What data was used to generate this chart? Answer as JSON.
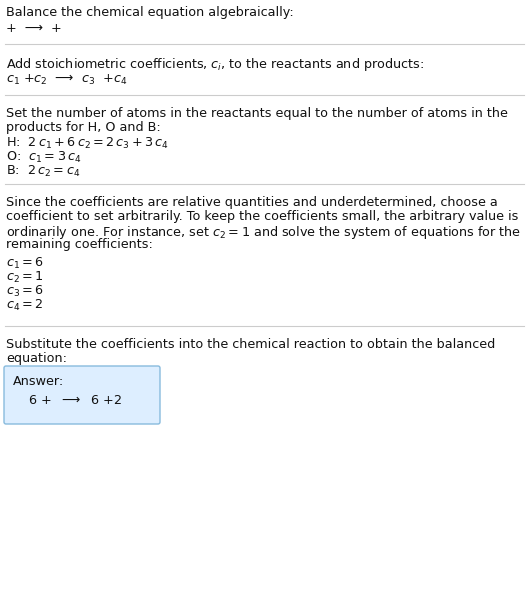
{
  "title": "Balance the chemical equation algebraically:",
  "line1": "+  ⟶  +",
  "section1_header": "Add stoichiometric coefficients, $c_i$, to the reactants and products:",
  "section1_eq_parts": [
    "$c_1$",
    " +",
    "$c_2$",
    "  ⟶  ",
    "$c_3$",
    "  +",
    "$c_4$"
  ],
  "section2_header_line1": "Set the number of atoms in the reactants equal to the number of atoms in the",
  "section2_header_line2": "products for H, O and B:",
  "section2_H": "H:  $2\\,c_1 + 6\\,c_2 = 2\\,c_3 + 3\\,c_4$",
  "section2_O": "O:  $c_1 = 3\\,c_4$",
  "section2_B": "B:  $2\\,c_2 = c_4$",
  "section3_header": "Since the coefficients are relative quantities and underdetermined, choose a\ncoefficient to set arbitrarily. To keep the coefficients small, the arbitrary value is\nordinarily one. For instance, set $c_2 = 1$ and solve the system of equations for the\nremaining coefficients:",
  "section3_vals": [
    "$c_1 = 6$",
    "$c_2 = 1$",
    "$c_3 = 6$",
    "$c_4 = 2$"
  ],
  "section4_header_line1": "Substitute the coefficients into the chemical reaction to obtain the balanced",
  "section4_header_line2": "equation:",
  "answer_label": "Answer:",
  "answer_eq": "6  +   ⟶   6  + 2",
  "bg_color": "#ffffff",
  "answer_box_facecolor": "#ddeeff",
  "answer_box_edgecolor": "#88bbdd",
  "divider_color": "#cccccc",
  "text_color": "#111111"
}
